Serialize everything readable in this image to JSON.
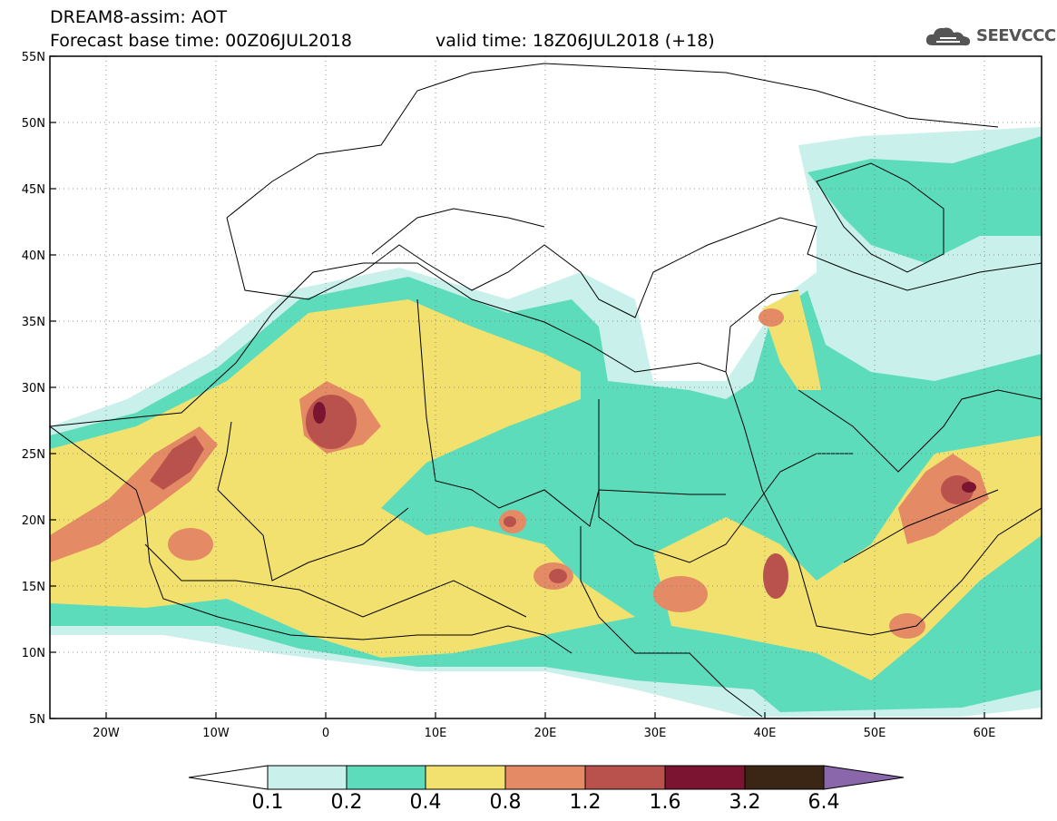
{
  "header": {
    "title_line1": "DREAM8-assim: AOT",
    "title_line2": "Forecast base time: 00Z06JUL2018",
    "valid_time": "valid time: 18Z06JUL2018 (+18)"
  },
  "logo": {
    "text": "SEEVCCC",
    "icon": "cloud-icon"
  },
  "axes": {
    "lat_labels": [
      "55N",
      "50N",
      "45N",
      "40N",
      "35N",
      "30N",
      "25N",
      "20N",
      "15N",
      "10N",
      "5N"
    ],
    "lon_labels": [
      "20W",
      "10W",
      "0",
      "10E",
      "20E",
      "30E",
      "40E",
      "50E",
      "60E"
    ]
  },
  "colorbar": {
    "labels": [
      "0.1",
      "0.2",
      "0.4",
      "0.8",
      "1.2",
      "1.6",
      "3.2",
      "6.4"
    ],
    "colors": [
      "#ffffff",
      "#c9f0ea",
      "#5ddcbb",
      "#f2e16e",
      "#e48b66",
      "#b9524c",
      "#7a1430",
      "#3b2514",
      "#8a66aa"
    ]
  },
  "palette": {
    "aot_0_1": "#c9f0ea",
    "aot_0_2": "#5ddcbb",
    "aot_0_4": "#f2e16e",
    "aot_0_8": "#e48b66",
    "aot_1_2": "#b9524c",
    "aot_1_6": "#7a1430"
  }
}
